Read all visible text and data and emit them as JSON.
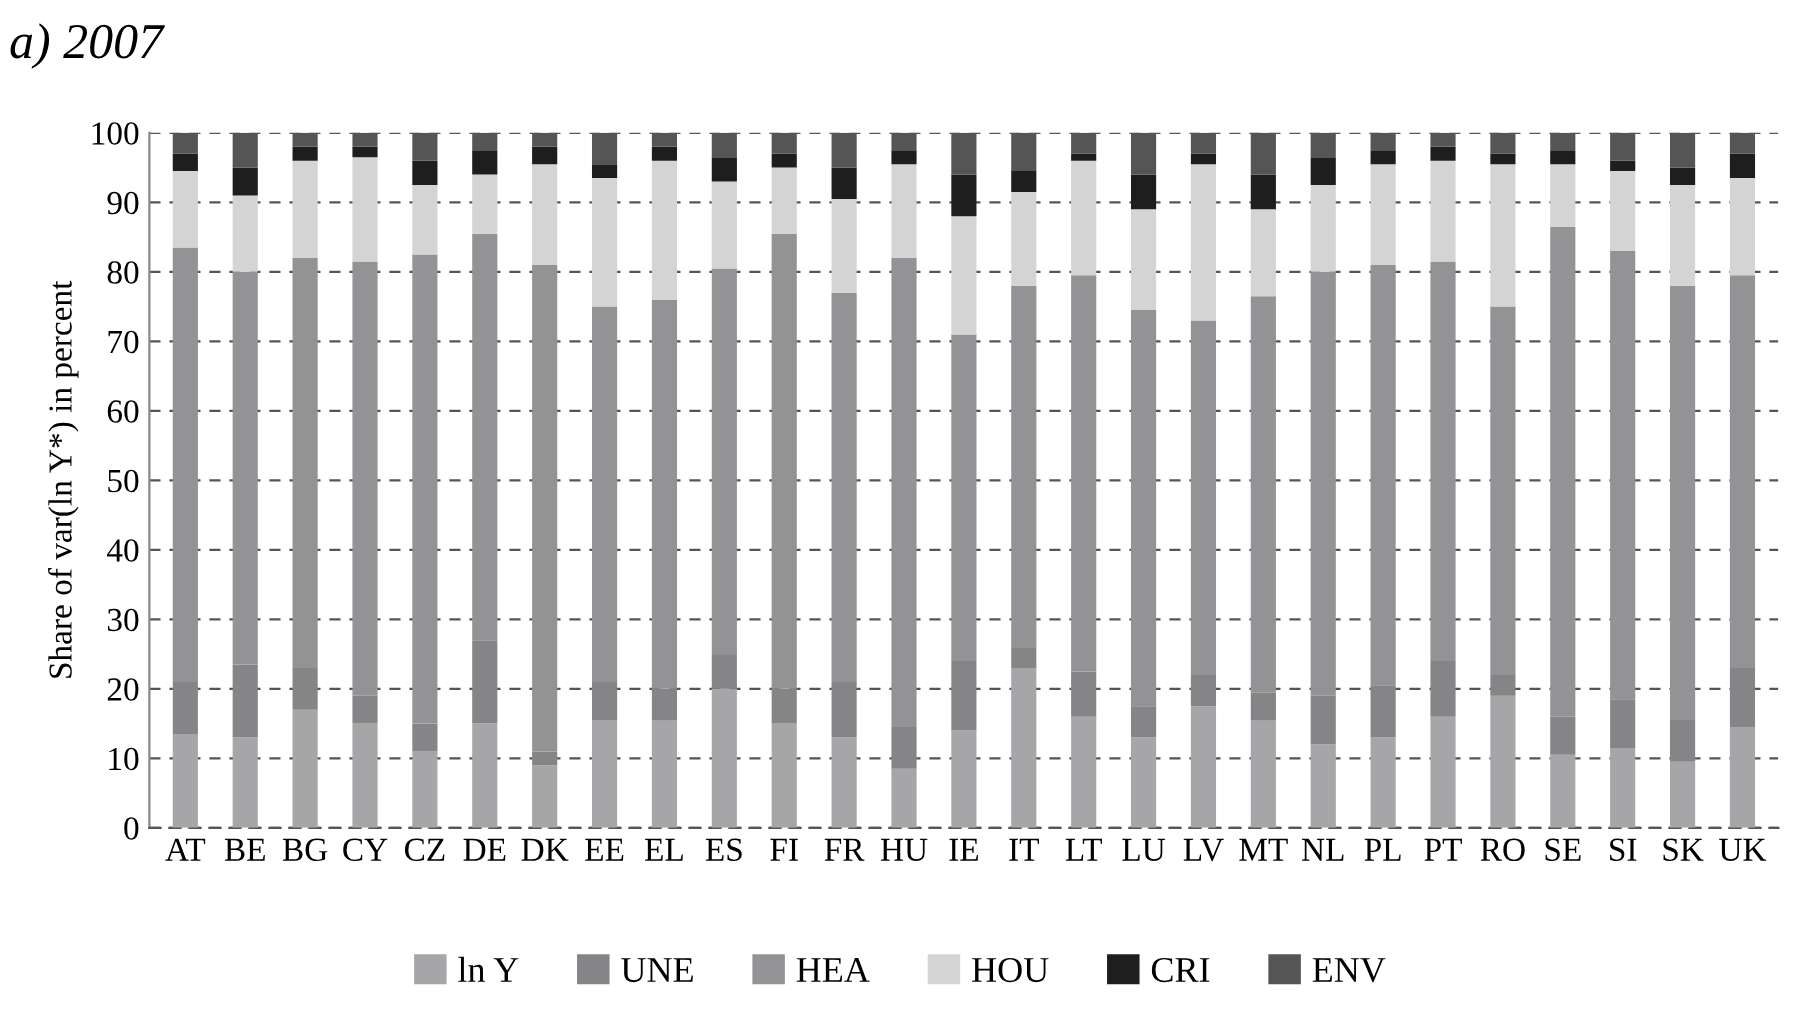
{
  "chart_data": {
    "type": "bar",
    "stacked": true,
    "title": "a) 2007",
    "ylabel": "Share of var(ln Y*) in percent",
    "categories": [
      "AT",
      "BE",
      "BG",
      "CY",
      "CZ",
      "DE",
      "DK",
      "EE",
      "EL",
      "ES",
      "FI",
      "FR",
      "HU",
      "IE",
      "IT",
      "LT",
      "LU",
      "LV",
      "MT",
      "NL",
      "PL",
      "PT",
      "RO",
      "SE",
      "SI",
      "SK",
      "UK"
    ],
    "series": [
      {
        "name": "ln Y",
        "color": "#a6a6a8",
        "values": [
          13.5,
          13,
          17,
          15,
          11,
          15,
          9,
          15.5,
          15.5,
          20,
          15,
          13,
          8.5,
          14,
          23,
          16,
          13,
          17.5,
          15.5,
          12,
          13,
          16,
          19,
          10.5,
          11.5,
          9.5,
          14.5
        ]
      },
      {
        "name": "UNE",
        "color": "#858587",
        "values": [
          7.5,
          10.5,
          6,
          4,
          4,
          12,
          2,
          5.5,
          4.5,
          5,
          5,
          8,
          6,
          10,
          3,
          6.5,
          4.5,
          4.5,
          4,
          7,
          7.5,
          8,
          3,
          5.5,
          7,
          6,
          8.5
        ]
      },
      {
        "name": "HEA",
        "color": "#939395",
        "values": [
          62.5,
          56.5,
          59,
          62.5,
          67.5,
          58.5,
          70,
          54,
          56,
          55.5,
          65.5,
          56,
          67.5,
          47,
          52,
          57,
          57,
          51,
          57,
          61,
          60.5,
          57.5,
          53,
          70.5,
          64.5,
          62.5,
          56.5
        ]
      },
      {
        "name": "HOU",
        "color": "#d4d4d4",
        "values": [
          11,
          11,
          14,
          15,
          10,
          8.5,
          14.5,
          18.5,
          20,
          12.5,
          9.5,
          13.5,
          13.5,
          17,
          13.5,
          16.5,
          14.5,
          22.5,
          12.5,
          12.5,
          14.5,
          14.5,
          20.5,
          9,
          11.5,
          14.5,
          14
        ]
      },
      {
        "name": "CRI",
        "color": "#1e1e1e",
        "values": [
          2.5,
          4,
          2,
          1.5,
          3.5,
          3.5,
          2.5,
          2,
          2,
          3.5,
          2,
          4.5,
          2,
          6,
          3,
          1,
          5,
          1.5,
          5,
          4,
          2,
          2,
          1.5,
          2,
          1.5,
          2.5,
          3.5
        ]
      },
      {
        "name": "ENV",
        "color": "#555555",
        "values": [
          3,
          5,
          2,
          2,
          4,
          2.5,
          2,
          4.5,
          2,
          3.5,
          3,
          5,
          2.5,
          6,
          5.5,
          3,
          6,
          3,
          6,
          3.5,
          2.5,
          2,
          3,
          2.5,
          4,
          5,
          3
        ]
      }
    ],
    "ylim": [
      0,
      100
    ],
    "yticks": [
      0,
      10,
      20,
      30,
      40,
      50,
      60,
      70,
      80,
      90,
      100
    ],
    "grid": "y",
    "legend": "bottom"
  }
}
